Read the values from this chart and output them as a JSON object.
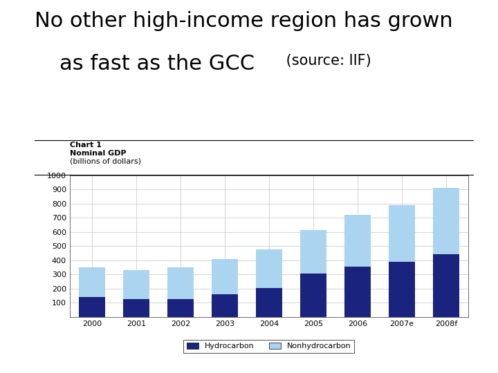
{
  "title_line1": "No other high-income region has grown",
  "title_line2": "as fast as the GCC",
  "title_source": " (source: IIF)",
  "chart_title_line1": "Chart 1",
  "chart_title_line2": "Nominal GDP",
  "chart_title_line3": "(billions of dollars)",
  "years": [
    "2000",
    "2001",
    "2002",
    "2003",
    "2004",
    "2005",
    "2006",
    "2007e",
    "2008f"
  ],
  "hydrocarbon": [
    140,
    125,
    125,
    160,
    205,
    305,
    355,
    390,
    445
  ],
  "nonhydrocarbon": [
    210,
    205,
    225,
    250,
    275,
    310,
    365,
    400,
    465
  ],
  "hydrocarbon_color": "#1a237e",
  "nonhydrocarbon_color": "#aad4f0",
  "background_color": "#ffffff",
  "ylim": [
    0,
    1000
  ],
  "yticks": [
    0,
    100,
    200,
    300,
    400,
    500,
    600,
    700,
    800,
    900,
    1000
  ],
  "legend_hydrocarbon": "Hydrocarbon",
  "legend_nonhydrocarbon": "Nonhydrocarbon",
  "bar_width": 0.6,
  "grid_color": "#cccccc",
  "title_fontsize": 22,
  "source_fontsize": 15,
  "chart_label_fontsize": 8,
  "axis_fontsize": 8,
  "legend_fontsize": 8,
  "border_color": "#555555"
}
